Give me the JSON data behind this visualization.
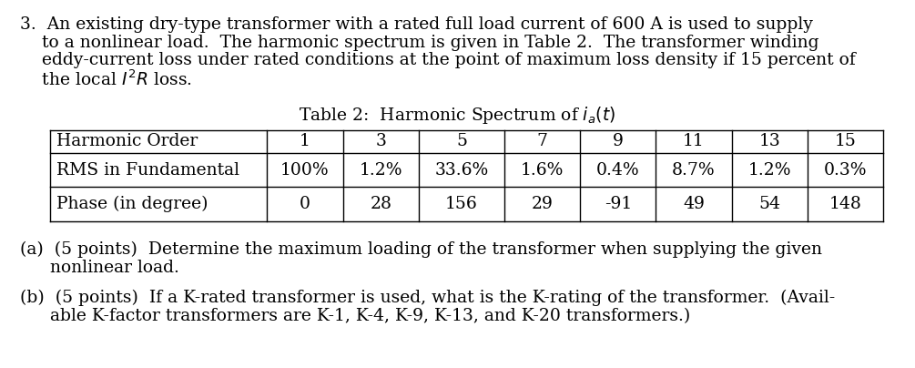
{
  "background_color": "#ffffff",
  "intro_line1": "3.  An existing dry-type transformer with a rated full load current of 600 A is used to supply",
  "intro_line2": "    to a nonlinear load.  The harmonic spectrum is given in Table 2.  The transformer winding",
  "intro_line3": "    eddy-current loss under rated conditions at the point of maximum loss density if 15 percent of",
  "intro_line4": "    the local $I^2R$ loss.",
  "table_title": "Table 2:  Harmonic Spectrum of $i_a(t)$",
  "table_headers": [
    "Harmonic Order",
    "1",
    "3",
    "5",
    "7",
    "9",
    "11",
    "13",
    "15"
  ],
  "table_row1": [
    "RMS in Fundamental",
    "100%",
    "1.2%",
    "33.6%",
    "1.6%",
    "0.4%",
    "8.7%",
    "1.2%",
    "0.3%"
  ],
  "table_row2": [
    "Phase (in degree)",
    "0",
    "28",
    "156",
    "29",
    "-91",
    "49",
    "54",
    "148"
  ],
  "parta_line1": "(a)  (5 points)  Determine the maximum loading of the transformer when supplying the given",
  "parta_line2": "      nonlinear load.",
  "partb_line1": "(b)  (5 points)  If a K-rated transformer is used, what is the K-rating of the transformer.  (Avail-",
  "partb_line2": "      able K-factor transformers are K-1, K-4, K-9, K-13, and K-20 transformers.)",
  "figsize": [
    10.05,
    4.04
  ],
  "dpi": 100
}
